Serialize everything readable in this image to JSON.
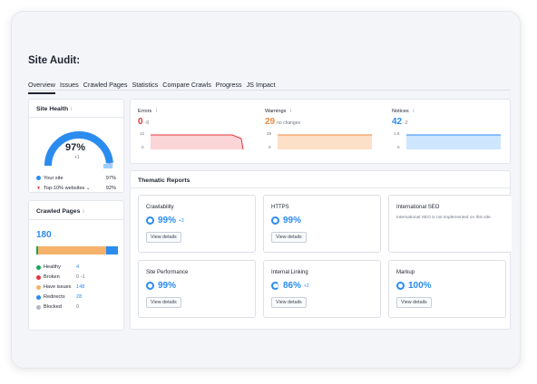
{
  "page": {
    "title": "Site Audit:"
  },
  "tabs": [
    {
      "label": "Overview",
      "active": true
    },
    {
      "label": "Issues"
    },
    {
      "label": "Crawled Pages"
    },
    {
      "label": "Statistics"
    },
    {
      "label": "Compare Crawls"
    },
    {
      "label": "Progress"
    },
    {
      "label": "JS Impact"
    }
  ],
  "site_health": {
    "title": "Site Health",
    "info": "i",
    "value": "97%",
    "delta": "+1",
    "score_fraction": 0.97,
    "your_site_label": "Your site",
    "your_site_value": "97%",
    "top10_label": "Top-10% websites",
    "top10_value": "92%"
  },
  "crawled_pages": {
    "title": "Crawled Pages",
    "info": "i",
    "total": "180",
    "total_delta": "-",
    "items": [
      {
        "label": "Healthy",
        "value": "4",
        "color": "#18a558",
        "delta": ""
      },
      {
        "label": "Broken",
        "value": "0",
        "color": "#e8333b",
        "delta": "-1"
      },
      {
        "label": "Have issues",
        "value": "148",
        "color": "#f6b26b",
        "delta": ""
      },
      {
        "label": "Redirects",
        "value": "28",
        "color": "#2b8cf0",
        "delta": ""
      },
      {
        "label": "Blocked",
        "value": "0",
        "color": "#b5bac4",
        "delta": ""
      }
    ]
  },
  "metrics": {
    "errors": {
      "label": "Errors",
      "info": "i",
      "value": "0",
      "delta": "-9",
      "color": "#e8333b",
      "fill": "#fbd5d7",
      "tick_top": "12",
      "tick_bottom": "0"
    },
    "warnings": {
      "label": "Warnings",
      "info": "i",
      "value": "29",
      "delta": "no changes",
      "color": "#f08a3c",
      "fill": "#fde0c8",
      "tick_top": "29",
      "tick_bottom": "0"
    },
    "notices": {
      "label": "Notices",
      "info": "i",
      "value": "42",
      "delta": "-2",
      "color": "#2b8cf0",
      "fill": "#cfe6ff",
      "tick_top": "1.8",
      "tick_bottom": "0"
    }
  },
  "thematic": {
    "title": "Thematic Reports",
    "button_label": "View details",
    "reports": [
      {
        "name": "Crawlability",
        "value": "99%",
        "delta": "+3"
      },
      {
        "name": "HTTPS",
        "value": "99%",
        "delta": ""
      },
      {
        "name": "International SEO",
        "note": "International SEO is not implemented on this site."
      },
      {
        "name": "Site Performance",
        "value": "99%",
        "delta": ""
      },
      {
        "name": "Internal Linking",
        "value": "86%",
        "delta": "+2"
      },
      {
        "name": "Markup",
        "value": "100%",
        "delta": ""
      }
    ]
  }
}
